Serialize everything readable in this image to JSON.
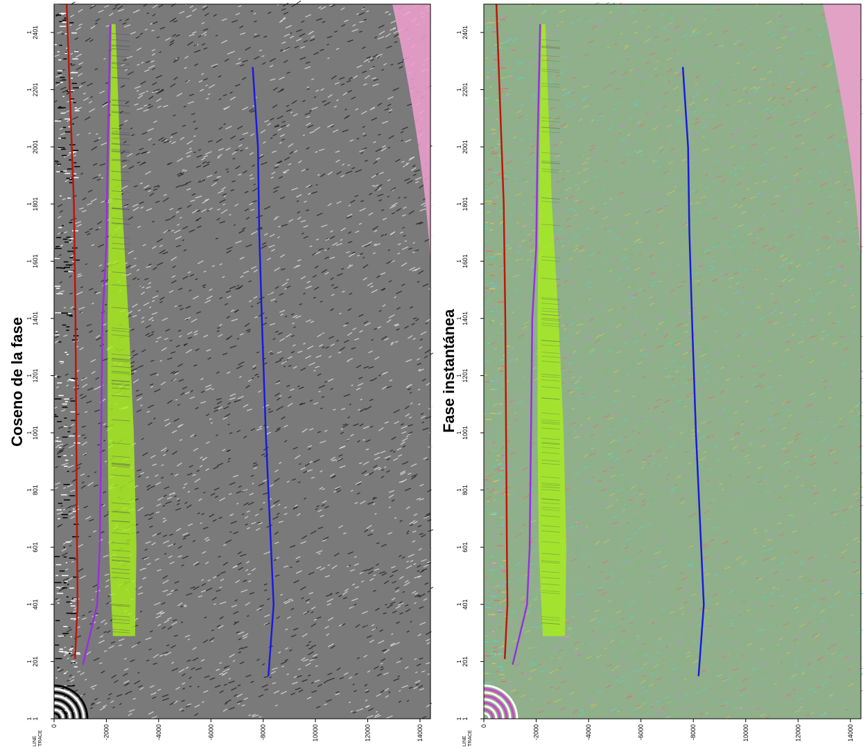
{
  "panels": [
    {
      "id": "left",
      "title": "Coseno de la fase",
      "theme": "grayscale",
      "colors": {
        "background": "#7a7a7a",
        "noise_light": "#e8e8e8",
        "noise_dark": "#1a1a1a"
      }
    },
    {
      "id": "right",
      "title": "Fase instantánea",
      "theme": "color",
      "colors": {
        "background": "#8fb08a",
        "noise_a": "#5fd0c0",
        "noise_b": "#b88fd0",
        "noise_c": "#d0c060"
      }
    }
  ],
  "axis": {
    "corner_label_top": "LINE",
    "corner_label_bottom": "TRACE",
    "y_ticks": [
      "1",
      "201",
      "401",
      "601",
      "801",
      "1001",
      "1201",
      "1401",
      "1601",
      "1801",
      "2001",
      "2201",
      "2401"
    ],
    "y_tick_prefix": "1",
    "x_ticks": [
      "0",
      "-2000",
      "-4000",
      "-6000",
      "-8000",
      "10000",
      "12000",
      "14000"
    ]
  },
  "horizon_colors": {
    "red": "#c0140c",
    "purple": "#9a2ee0",
    "green": "#a8f018",
    "blue": "#1a1ae0",
    "pink": "#f0a0d0"
  },
  "chart_data": {
    "type": "diagram",
    "x_range": [
      0,
      14400
    ],
    "y_range": [
      1,
      2500
    ],
    "horizons": [
      {
        "color_key": "red",
        "points": [
          [
            480,
            2500
          ],
          [
            600,
            2200
          ],
          [
            760,
            1800
          ],
          [
            820,
            1400
          ],
          [
            850,
            1000
          ],
          [
            880,
            600
          ],
          [
            900,
            400
          ],
          [
            800,
            210
          ]
        ]
      },
      {
        "color_key": "purple",
        "points": [
          [
            2150,
            2430
          ],
          [
            2050,
            2000
          ],
          [
            2000,
            1650
          ],
          [
            1850,
            1400
          ],
          [
            1800,
            1000
          ],
          [
            1750,
            600
          ],
          [
            1650,
            400
          ],
          [
            1100,
            190
          ]
        ]
      },
      {
        "color_key": "blue",
        "points": [
          [
            7600,
            2280
          ],
          [
            7800,
            2000
          ],
          [
            7850,
            1700
          ],
          [
            7950,
            1400
          ],
          [
            8100,
            1000
          ],
          [
            8300,
            600
          ],
          [
            8400,
            400
          ],
          [
            8200,
            150
          ]
        ]
      }
    ],
    "green_body": {
      "color_key": "green",
      "left": [
        [
          2200,
          2430
        ],
        [
          2100,
          1800
        ],
        [
          2050,
          1400
        ],
        [
          2050,
          1000
        ],
        [
          2100,
          600
        ],
        [
          2250,
          290
        ]
      ],
      "right": [
        [
          2350,
          2430
        ],
        [
          2600,
          1800
        ],
        [
          2850,
          1400
        ],
        [
          3050,
          1000
        ],
        [
          3150,
          600
        ],
        [
          3100,
          290
        ]
      ]
    }
  }
}
